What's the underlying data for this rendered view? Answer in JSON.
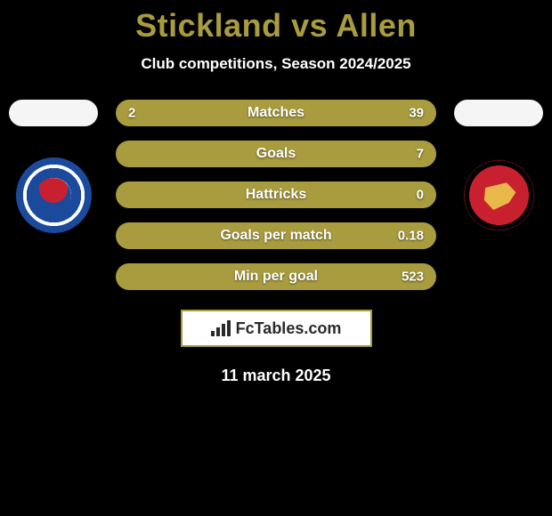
{
  "title": "Stickland vs Allen",
  "subtitle": "Club competitions, Season 2024/2025",
  "date": "11 march 2025",
  "watermark": "FcTables.com",
  "colors": {
    "accent": "#a89c3f",
    "bg": "#000000",
    "text": "#ffffff"
  },
  "left_player": {
    "name": "Stickland",
    "club": "Reading"
  },
  "right_player": {
    "name": "Allen",
    "club": "Walsall"
  },
  "bars": [
    {
      "label": "Matches",
      "left": "2",
      "right": "39"
    },
    {
      "label": "Goals",
      "left": "",
      "right": "7"
    },
    {
      "label": "Hattricks",
      "left": "",
      "right": "0"
    },
    {
      "label": "Goals per match",
      "left": "",
      "right": "0.18"
    },
    {
      "label": "Min per goal",
      "left": "",
      "right": "523"
    }
  ]
}
